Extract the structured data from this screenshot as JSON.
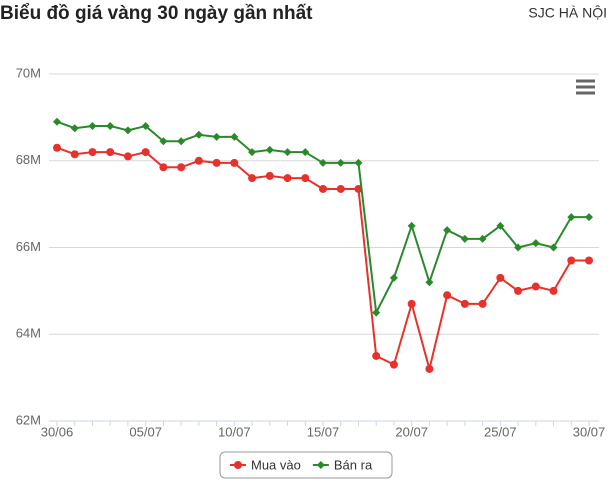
{
  "chart_data": {
    "type": "line",
    "title": "Biểu đồ giá vàng 30 ngày gần nhất",
    "subtitle": "SJC HÀ NỘI",
    "categories": [
      "30/06",
      null,
      null,
      null,
      null,
      "05/07",
      null,
      null,
      null,
      null,
      "10/07",
      null,
      null,
      null,
      null,
      "15/07",
      null,
      null,
      null,
      null,
      "20/07",
      null,
      null,
      null,
      null,
      "25/07",
      null,
      null,
      null,
      null,
      "30/07"
    ],
    "series": [
      {
        "name": "Mua vào",
        "color": "#e8312a",
        "marker": "circle",
        "values": [
          68300000,
          68150000,
          68200000,
          68200000,
          68100000,
          68200000,
          67850000,
          67850000,
          68000000,
          67950000,
          67950000,
          67600000,
          67650000,
          67600000,
          67600000,
          67350000,
          67350000,
          67350000,
          63500000,
          63300000,
          64700000,
          63200000,
          64900000,
          64700000,
          64700000,
          65300000,
          65000000,
          65100000,
          65000000,
          65700000,
          65700000
        ]
      },
      {
        "name": "Bán ra",
        "color": "#2a8a2a",
        "marker": "diamond",
        "values": [
          68900000,
          68750000,
          68800000,
          68800000,
          68700000,
          68800000,
          68450000,
          68450000,
          68600000,
          68550000,
          68550000,
          68200000,
          68250000,
          68200000,
          68200000,
          67950000,
          67950000,
          67950000,
          64500000,
          65300000,
          66500000,
          65200000,
          66400000,
          66200000,
          66200000,
          66500000,
          66000000,
          66100000,
          66000000,
          66700000,
          66700000
        ]
      }
    ],
    "ylim": [
      62000000,
      70000000
    ],
    "yticks": [
      {
        "value": 62000000,
        "label": "62M"
      },
      {
        "value": 64000000,
        "label": "64M"
      },
      {
        "value": 66000000,
        "label": "66M"
      },
      {
        "value": 68000000,
        "label": "68M"
      },
      {
        "value": 70000000,
        "label": "70M"
      }
    ],
    "grid": true,
    "legend": "bottom"
  }
}
